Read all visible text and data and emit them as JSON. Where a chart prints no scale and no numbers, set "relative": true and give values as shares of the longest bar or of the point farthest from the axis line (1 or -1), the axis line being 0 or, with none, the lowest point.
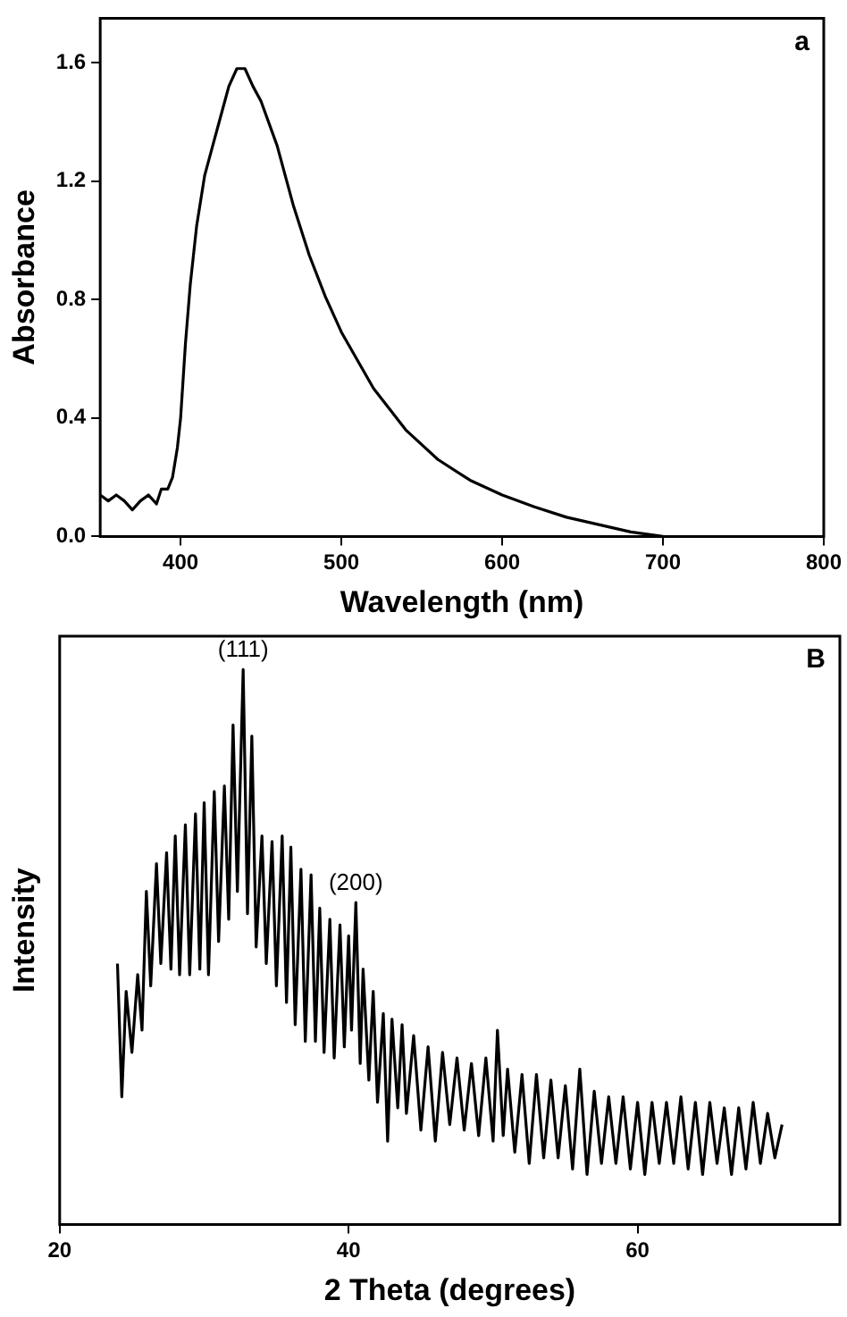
{
  "chart_data": [
    {
      "type": "line",
      "xlabel": "Wavelength (nm)",
      "ylabel": "Absorbance",
      "annotations": [
        "a"
      ],
      "series": [
        {
          "color": "#000000",
          "x": [
            350,
            355,
            360,
            365,
            370,
            375,
            380,
            385,
            388,
            392,
            395,
            398,
            400,
            403,
            406,
            410,
            415,
            420,
            425,
            430,
            435,
            440,
            445,
            450,
            460,
            470,
            480,
            490,
            500,
            520,
            540,
            560,
            580,
            600,
            620,
            640,
            660,
            680,
            700
          ],
          "values": [
            0.14,
            0.12,
            0.14,
            0.12,
            0.09,
            0.12,
            0.14,
            0.11,
            0.16,
            0.16,
            0.2,
            0.3,
            0.4,
            0.65,
            0.85,
            1.05,
            1.22,
            1.32,
            1.42,
            1.52,
            1.58,
            1.58,
            1.52,
            1.47,
            1.32,
            1.12,
            0.95,
            0.81,
            0.69,
            0.5,
            0.36,
            0.26,
            0.19,
            0.14,
            0.1,
            0.065,
            0.04,
            0.015,
            0
          ]
        }
      ],
      "xlim": [
        350,
        800
      ],
      "xticks": [
        400,
        500,
        600,
        700,
        800
      ],
      "ylim": [
        0,
        1.75
      ],
      "yticks": [
        {
          "value": 0,
          "label": "0.0"
        },
        {
          "value": 0.4,
          "label": "0.4"
        },
        {
          "value": 0.8,
          "label": "0.8"
        },
        {
          "value": 1.2,
          "label": "1.2"
        },
        {
          "value": 1.6,
          "label": "1.6"
        }
      ],
      "marker": "none",
      "line_style": "solid",
      "grid": false,
      "legend": false
    },
    {
      "type": "line",
      "xlabel": "2 Theta (degrees)",
      "ylabel": "Intensity",
      "relative": true,
      "tick_labels": "x",
      "annotations": [
        "B",
        {
          "text": "(111)",
          "x": 32.7,
          "y": 1.0
        },
        {
          "text": "(200)",
          "x": 40.5,
          "y": 0.58
        }
      ],
      "series": [
        {
          "color": "#000000",
          "x": [
            24,
            24.3,
            24.6,
            25,
            25.4,
            25.7,
            26,
            26.3,
            26.7,
            27,
            27.4,
            27.7,
            28,
            28.3,
            28.7,
            29,
            29.4,
            29.7,
            30,
            30.3,
            30.7,
            31,
            31.4,
            31.7,
            32,
            32.3,
            32.7,
            33,
            33.3,
            33.6,
            34,
            34.3,
            34.7,
            35,
            35.4,
            35.7,
            36,
            36.3,
            36.7,
            37,
            37.4,
            37.7,
            38,
            38.3,
            38.7,
            39,
            39.4,
            39.7,
            40,
            40.2,
            40.5,
            40.8,
            41,
            41.4,
            41.7,
            42,
            42.4,
            42.7,
            43,
            43.4,
            43.7,
            44,
            44.5,
            45,
            45.5,
            46,
            46.5,
            47,
            47.5,
            48,
            48.5,
            49,
            49.5,
            50,
            50.3,
            50.7,
            51,
            51.5,
            52,
            52.5,
            53,
            53.5,
            54,
            54.5,
            55,
            55.5,
            56,
            56.5,
            57,
            57.5,
            58,
            58.5,
            59,
            59.5,
            60,
            60.5,
            61,
            61.5,
            62,
            62.5,
            63,
            63.5,
            64,
            64.5,
            65,
            65.5,
            66,
            66.5,
            67,
            67.5,
            68,
            68.5,
            69,
            69.5,
            70
          ],
          "values": [
            0.47,
            0.23,
            0.42,
            0.31,
            0.45,
            0.35,
            0.6,
            0.43,
            0.65,
            0.47,
            0.67,
            0.46,
            0.7,
            0.45,
            0.72,
            0.45,
            0.74,
            0.46,
            0.76,
            0.45,
            0.78,
            0.51,
            0.79,
            0.55,
            0.9,
            0.6,
            1.0,
            0.56,
            0.88,
            0.5,
            0.7,
            0.47,
            0.69,
            0.43,
            0.7,
            0.4,
            0.68,
            0.36,
            0.64,
            0.33,
            0.63,
            0.33,
            0.57,
            0.31,
            0.55,
            0.3,
            0.54,
            0.32,
            0.52,
            0.35,
            0.58,
            0.29,
            0.46,
            0.26,
            0.42,
            0.22,
            0.38,
            0.15,
            0.37,
            0.21,
            0.36,
            0.2,
            0.34,
            0.17,
            0.32,
            0.15,
            0.31,
            0.18,
            0.3,
            0.17,
            0.29,
            0.16,
            0.3,
            0.15,
            0.35,
            0.16,
            0.28,
            0.13,
            0.27,
            0.11,
            0.27,
            0.12,
            0.26,
            0.12,
            0.25,
            0.1,
            0.28,
            0.09,
            0.24,
            0.11,
            0.23,
            0.11,
            0.23,
            0.1,
            0.22,
            0.09,
            0.22,
            0.11,
            0.22,
            0.11,
            0.23,
            0.1,
            0.22,
            0.09,
            0.22,
            0.11,
            0.21,
            0.09,
            0.21,
            0.1,
            0.22,
            0.11,
            0.2,
            0.12,
            0.18
          ]
        }
      ],
      "xlim": [
        20,
        74
      ],
      "xticks": [
        20,
        40,
        60
      ],
      "marker": "none",
      "line_style": "solid",
      "grid": false,
      "legend": false
    }
  ]
}
